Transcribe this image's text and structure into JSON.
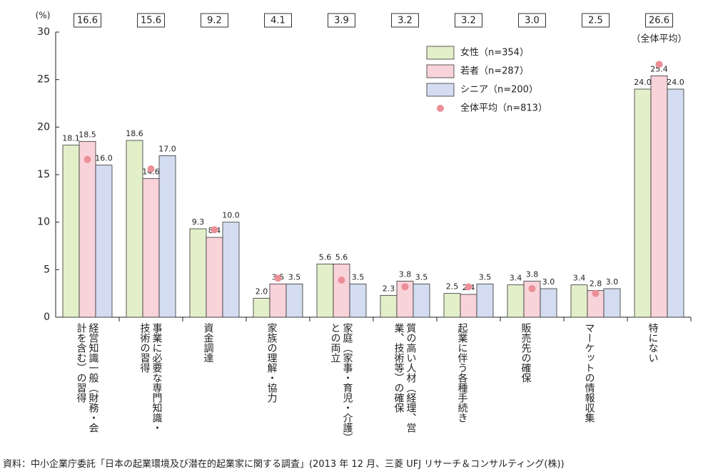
{
  "chart_data": {
    "type": "bar",
    "y_label": "(%)",
    "annotation": "（全体平均）",
    "source": "資料：中小企業庁委託「日本の起業環境及び潜在的起業家に関する調査」(2013 年 12 月、三菱 UFJ リサーチ＆コンサルティング(株))",
    "categories": [
      "経営知識一般（財務・会計を含む）の習得",
      "事業に必要な専門知識・技術の習得",
      "資金調達",
      "家族の理解・協力",
      "家庭（家事・育児・介護）との両立",
      "質の高い人材（経理、営業、技術等）の確保",
      "起業に伴う各種手続き",
      "販売先の確保",
      "マーケットの情報収集",
      "特にない"
    ],
    "series": [
      {
        "name": "女性（n=354）",
        "color": "#e2efc9",
        "values": [
          18.1,
          18.6,
          9.3,
          2.0,
          5.6,
          2.3,
          2.5,
          3.4,
          3.4,
          24.0
        ],
        "value_labels": [
          "18.1",
          "18.6",
          "9.3",
          "2.0",
          "5.6",
          "2.3",
          "2.5",
          "3.4",
          "3.4",
          "24.0"
        ]
      },
      {
        "name": "若者（n=287）",
        "color": "#f9d3da",
        "values": [
          18.5,
          14.6,
          8.4,
          3.5,
          5.6,
          3.8,
          2.4,
          3.8,
          2.8,
          25.4
        ],
        "value_labels": [
          "18.5",
          "14.6",
          "8.4",
          "3.5",
          "5.6",
          "3.8",
          "2.4",
          "3.8",
          "2.8",
          "25.4"
        ]
      },
      {
        "name": "シニア（n=200）",
        "color": "#d3dcf0",
        "values": [
          16.0,
          17.0,
          10.0,
          3.5,
          3.5,
          3.5,
          3.5,
          3.0,
          3.0,
          24.0
        ],
        "value_labels": [
          "16.0",
          "17.0",
          "10.0",
          "3.5",
          "3.5",
          "3.5",
          "3.5",
          "3.0",
          "3.0",
          "24.0"
        ]
      },
      {
        "name": "全体平均（n=813）",
        "color": "#ec8f98",
        "values": [
          16.6,
          15.6,
          9.2,
          4.1,
          3.9,
          3.2,
          3.2,
          3.0,
          2.5,
          26.6
        ],
        "value_labels": [
          "16.6",
          "15.6",
          "9.2",
          "4.1",
          "3.9",
          "3.2",
          "3.2",
          "3.0",
          "2.5",
          "26.6"
        ]
      }
    ],
    "ylim": [
      0,
      30
    ],
    "yticks": [
      0,
      5,
      10,
      15,
      20,
      25,
      30
    ]
  }
}
